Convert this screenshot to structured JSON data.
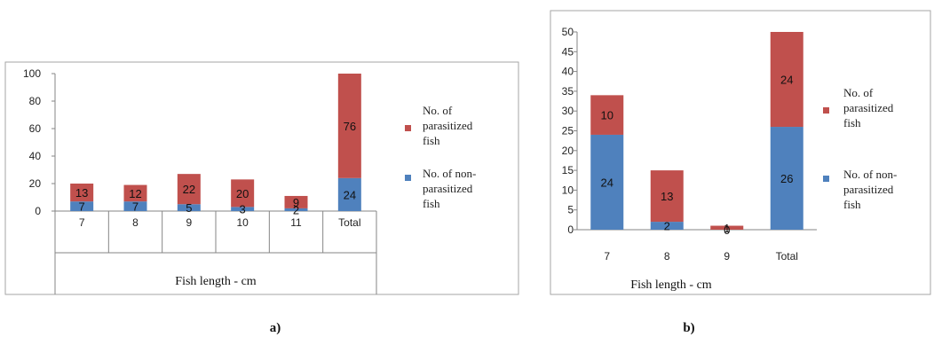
{
  "colors": {
    "parasitized": "#c0504d",
    "non_parasitized": "#4f81bd",
    "border": "#a6a6a6",
    "axis": "#868686"
  },
  "chart_data": [
    {
      "panel": "a)",
      "type": "bar",
      "stacked": true,
      "categories": [
        "7",
        "8",
        "9",
        "10",
        "11",
        "Total"
      ],
      "series": [
        {
          "name": "No. of non-parasitized fish",
          "color": "#4f81bd",
          "values": [
            7,
            7,
            5,
            3,
            2,
            24
          ]
        },
        {
          "name": "No. of parasitized fish",
          "color": "#c0504d",
          "values": [
            13,
            12,
            22,
            20,
            9,
            76
          ]
        }
      ],
      "xlabel": "Fish length - cm",
      "ylabel": "",
      "ylim": [
        0,
        100
      ],
      "yticks": [
        0,
        20,
        40,
        60,
        80,
        100
      ],
      "grid": false,
      "legend": "right",
      "legend_lines": {
        "parasitized": [
          "No. of",
          "parasitized",
          "fish"
        ],
        "non_parasitized": [
          "No. of non-",
          "parasitized",
          "fish"
        ]
      }
    },
    {
      "panel": "b)",
      "type": "bar",
      "stacked": true,
      "categories": [
        "7",
        "8",
        "9",
        "Total"
      ],
      "series": [
        {
          "name": "No. of non-parasitized fish",
          "color": "#4f81bd",
          "values": [
            24,
            2,
            0,
            26
          ]
        },
        {
          "name": "No. of parasitized fish",
          "color": "#c0504d",
          "values": [
            10,
            13,
            1,
            24
          ]
        }
      ],
      "xlabel": "Fish length - cm",
      "ylabel": "",
      "ylim": [
        0,
        50
      ],
      "yticks": [
        0,
        5,
        10,
        15,
        20,
        25,
        30,
        35,
        40,
        45,
        50
      ],
      "grid": false,
      "legend": "right",
      "legend_lines": {
        "parasitized": [
          "No. of",
          "parasitized",
          "fish"
        ],
        "non_parasitized": [
          "No. of non-",
          "parasitized",
          "fish"
        ]
      }
    }
  ]
}
